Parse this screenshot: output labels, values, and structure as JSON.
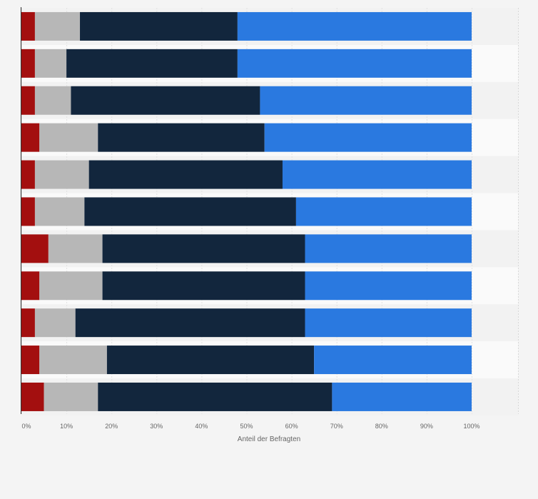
{
  "chart_data": {
    "type": "bar",
    "orientation": "horizontal",
    "stacked": true,
    "title": "",
    "xlabel": "Anteil der Befragten",
    "ylabel": "",
    "xlim": [
      0,
      100
    ],
    "x_ticks": [
      "0%",
      "10%",
      "20%",
      "30%",
      "40%",
      "50%",
      "60%",
      "70%",
      "80%",
      "90%",
      "100%"
    ],
    "categories": [
      "",
      "",
      "",
      "",
      "",
      "",
      "",
      "",
      "",
      "",
      ""
    ],
    "series": [
      {
        "color": "#a30f0f",
        "values": [
          3,
          3,
          3,
          4,
          3,
          3,
          6,
          4,
          3,
          4,
          5
        ]
      },
      {
        "color": "#b7b7b7",
        "values": [
          10,
          7,
          8,
          13,
          12,
          11,
          12,
          14,
          9,
          15,
          12
        ]
      },
      {
        "color": "#12263d",
        "values": [
          35,
          38,
          42,
          37,
          43,
          47,
          45,
          45,
          51,
          46,
          52
        ]
      },
      {
        "color": "#2a79e0",
        "values": [
          52,
          52,
          47,
          46,
          42,
          39,
          37,
          37,
          37,
          35,
          31
        ]
      }
    ],
    "grid": true,
    "legend": "none"
  }
}
